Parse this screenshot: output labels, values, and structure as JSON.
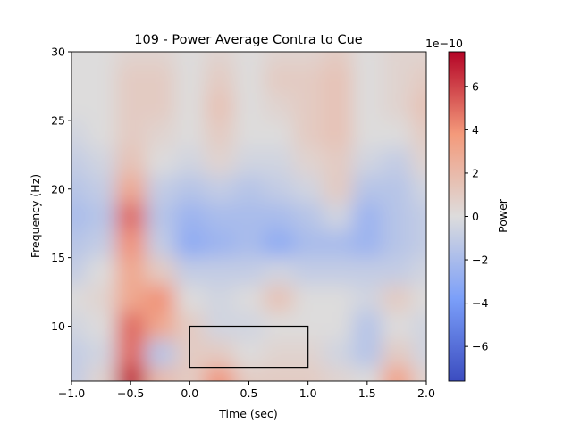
{
  "chart_data": {
    "type": "heatmap",
    "title": "109 - Power Average Contra to Cue",
    "xlabel": "Time (sec)",
    "ylabel": "Frequency (Hz)",
    "xlim": [
      -1.0,
      2.0
    ],
    "ylim": [
      6,
      30
    ],
    "xticks": [
      -1.0,
      -0.5,
      0.0,
      0.5,
      1.0,
      1.5,
      2.0
    ],
    "xtick_labels": [
      "−1.0",
      "−0.5",
      "0.0",
      "0.5",
      "1.0",
      "1.5",
      "2.0"
    ],
    "yticks": [
      10,
      15,
      20,
      25,
      30
    ],
    "ytick_labels": [
      "10",
      "15",
      "20",
      "25",
      "30"
    ],
    "colormap": "coolwarm",
    "colorbar": {
      "label": "Power",
      "offset_text": "1e−10",
      "range": [
        -7.6,
        7.6
      ],
      "ticks": [
        -6,
        -4,
        -2,
        0,
        2,
        4,
        6
      ],
      "tick_labels": [
        "−6",
        "−4",
        "−2",
        "0",
        "2",
        "4",
        "6"
      ]
    },
    "colors": {
      "low": "#3b4cc0",
      "midlow": "#7b9ff9",
      "mid": "#dddcdc",
      "midhigh": "#f49a7b",
      "high": "#b40426"
    },
    "times": [
      -1.0,
      -0.75,
      -0.5,
      -0.25,
      0.0,
      0.25,
      0.5,
      0.75,
      1.0,
      1.25,
      1.5,
      1.75,
      2.0
    ],
    "freqs": [
      30,
      28,
      26,
      24,
      22,
      20,
      18,
      16,
      14,
      12,
      10,
      8,
      6
    ],
    "values_units": "1e-10",
    "values": [
      [
        0,
        0,
        0.5,
        0.5,
        0,
        0.5,
        0,
        0.5,
        0.5,
        1,
        0,
        0.5,
        0.5
      ],
      [
        0,
        0,
        1,
        1,
        0,
        1,
        0,
        1,
        1,
        1.5,
        0,
        0.5,
        1
      ],
      [
        0,
        0,
        1,
        1,
        0,
        1.5,
        0,
        0.5,
        1,
        1.5,
        0,
        0.5,
        1.5
      ],
      [
        -0.5,
        0,
        1,
        0.5,
        0,
        1,
        0,
        0,
        1,
        1.5,
        0,
        0,
        1
      ],
      [
        -1,
        -0.5,
        1.5,
        0,
        -0.5,
        0.5,
        -0.5,
        -0.5,
        0.5,
        1,
        -0.5,
        -1,
        0.5
      ],
      [
        -1.5,
        -1,
        3,
        -1,
        -1.5,
        -1,
        -1.5,
        -1,
        -0.5,
        1,
        -1.5,
        -1.5,
        -0.5
      ],
      [
        -2,
        -1.5,
        5,
        -1.5,
        -2.5,
        -2,
        -2,
        -2,
        -1.5,
        -0.5,
        -2.5,
        -1.5,
        -1
      ],
      [
        -1.5,
        -1,
        4,
        -1,
        -3,
        -2.5,
        -2,
        -3,
        -2,
        -2,
        -2.5,
        -1.5,
        -1
      ],
      [
        -1,
        0,
        3,
        1,
        -1,
        -1,
        -1,
        -0.5,
        -1,
        -1,
        -1,
        -1,
        -0.5
      ],
      [
        0,
        0.5,
        3,
        4,
        0,
        -0.5,
        0,
        1.5,
        0,
        0,
        -0.5,
        1,
        0
      ],
      [
        -0.5,
        0,
        5,
        3,
        1,
        -0.5,
        -0.5,
        0,
        0,
        0,
        -1.5,
        0,
        -0.5
      ],
      [
        -1,
        -0.5,
        5,
        -1.5,
        1,
        1,
        0,
        0.5,
        0.5,
        -0.5,
        -1.5,
        1,
        -0.5
      ],
      [
        -1,
        0.5,
        7,
        2,
        1,
        4,
        1,
        1,
        1,
        0.5,
        0,
        3.5,
        0.5
      ]
    ],
    "annotation_box": {
      "time": [
        0.0,
        1.0
      ],
      "freq": [
        7,
        10
      ]
    },
    "grid": false
  }
}
